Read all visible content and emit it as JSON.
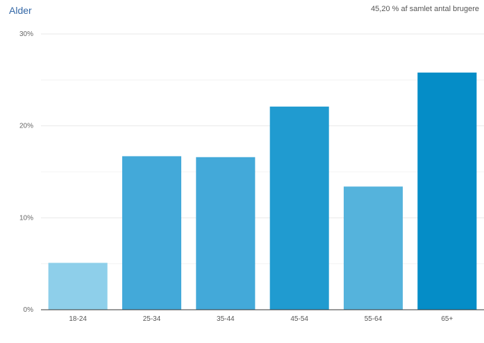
{
  "header": {
    "title": "Alder",
    "summary": "45,20 % af samlet antal brugere"
  },
  "chart_data": {
    "type": "bar",
    "categories": [
      "18-24",
      "25-34",
      "35-44",
      "45-54",
      "55-64",
      "65+"
    ],
    "values": [
      5.1,
      16.7,
      16.6,
      22.1,
      13.4,
      25.8
    ],
    "ylim": [
      0,
      30
    ],
    "yticks": [
      0,
      10,
      20,
      30
    ],
    "ytick_labels": [
      "0%",
      "10%",
      "20%",
      "30%"
    ],
    "grid": true,
    "colors": [
      "#8ecfea",
      "#43a9d9",
      "#43a9d9",
      "#209bd0",
      "#55b3dc",
      "#058dc7"
    ]
  }
}
